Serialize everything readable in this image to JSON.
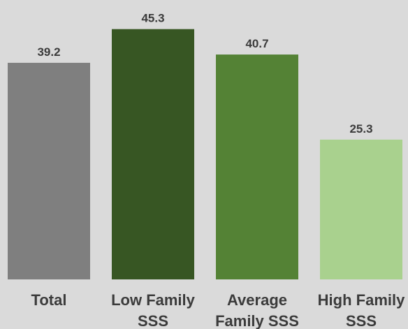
{
  "chart_data": {
    "type": "bar",
    "categories": [
      [
        "Total"
      ],
      [
        "Low Family",
        "SSS"
      ],
      [
        "Average",
        "Family SSS"
      ],
      [
        "High Family",
        "SSS"
      ]
    ],
    "values": [
      39.2,
      45.3,
      40.7,
      25.3
    ],
    "value_labels": [
      "39.2",
      "45.3",
      "40.7",
      "25.3"
    ],
    "bar_colors": [
      "#7f7f7f",
      "#375623",
      "#548235",
      "#a9d18e"
    ],
    "ylim": [
      0,
      50
    ],
    "grid": false,
    "legend": "none",
    "background": "#dadada"
  }
}
